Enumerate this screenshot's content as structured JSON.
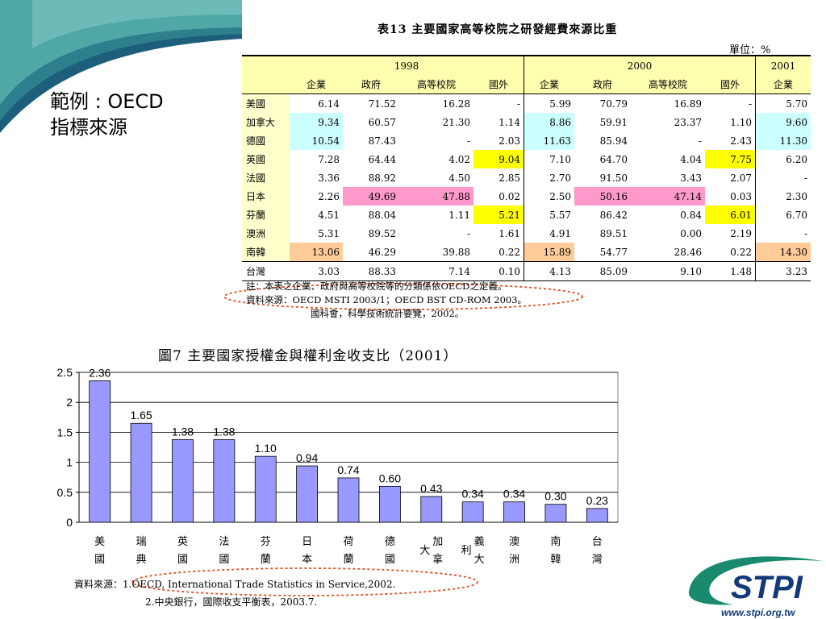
{
  "slide": {
    "side_label_1": "範例 : OECD",
    "side_label_2": "指標來源"
  },
  "table": {
    "title": "表13  主要國家高等校院之研發經費來源比重",
    "unit": "單位：%",
    "years": [
      "1998",
      "2000",
      "2001"
    ],
    "columns": [
      "企業",
      "政府",
      "高等校院",
      "國外",
      "企業",
      "政府",
      "高等校院",
      "國外",
      "企業"
    ],
    "rows": [
      {
        "country": "美國",
        "cells": [
          "6.14",
          "71.52",
          "16.28",
          "-",
          "5.99",
          "70.79",
          "16.89",
          "-",
          "5.70"
        ]
      },
      {
        "country": "加拿大",
        "cells": [
          "9.34",
          "60.57",
          "21.30",
          "1.14",
          "8.86",
          "59.91",
          "23.37",
          "1.10",
          "9.60"
        ]
      },
      {
        "country": "德國",
        "cells": [
          "10.54",
          "87.43",
          "-",
          "2.03",
          "11.63",
          "85.94",
          "-",
          "2.43",
          "11.30"
        ]
      },
      {
        "country": "英國",
        "cells": [
          "7.28",
          "64.44",
          "4.02",
          "9.04",
          "7.10",
          "64.70",
          "4.04",
          "7.75",
          "6.20"
        ]
      },
      {
        "country": "法國",
        "cells": [
          "3.36",
          "88.92",
          "4.50",
          "2.85",
          "2.70",
          "91.50",
          "3.43",
          "2.07",
          "-"
        ]
      },
      {
        "country": "日本",
        "cells": [
          "2.26",
          "49.69",
          "47.88",
          "0.02",
          "2.50",
          "50.16",
          "47.14",
          "0.03",
          "2.30"
        ]
      },
      {
        "country": "芬蘭",
        "cells": [
          "4.51",
          "88.04",
          "1.11",
          "5.21",
          "5.57",
          "86.42",
          "0.84",
          "6.01",
          "6.70"
        ]
      },
      {
        "country": "澳洲",
        "cells": [
          "5.31",
          "89.52",
          "-",
          "1.61",
          "4.91",
          "89.51",
          "0.00",
          "2.19",
          "-"
        ]
      },
      {
        "country": "南韓",
        "cells": [
          "13.06",
          "46.29",
          "39.88",
          "0.22",
          "15.89",
          "54.77",
          "28.46",
          "0.22",
          "14.30"
        ]
      },
      {
        "country": "台灣",
        "cells": [
          "3.03",
          "88.33",
          "7.14",
          "0.10",
          "4.13",
          "85.09",
          "9.10",
          "1.48",
          "3.23"
        ]
      }
    ],
    "highlight_colors": {
      "cyan": "#ccffff",
      "yellow": "#ffff00",
      "pink": "#ff99cc",
      "orange": "#ffcc99"
    },
    "notes": [
      "註：本表之企業、政府與高等校院等的分類係依OECD之定義。",
      "資料來源：OECD MSTI 2003/1；OECD BST  CD-ROM 2003。",
      "國科會，科學技術統計要覽，2002。"
    ]
  },
  "chart_data": {
    "type": "bar",
    "title": "圖7  主要國家授權金與權利金收支比（2001）",
    "categories": [
      "美國",
      "瑞典",
      "英國",
      "法國",
      "芬蘭",
      "日本",
      "荷蘭",
      "德國",
      "加拿大",
      "義大利",
      "澳洲",
      "南韓",
      "台灣"
    ],
    "category_lines": [
      [
        "美",
        "國"
      ],
      [
        "瑞",
        "典"
      ],
      [
        "英",
        "國"
      ],
      [
        "法",
        "國"
      ],
      [
        "芬",
        "蘭"
      ],
      [
        "日",
        "本"
      ],
      [
        "荷",
        "蘭"
      ],
      [
        "德",
        "國"
      ],
      [
        "加",
        "拿"
      ],
      [
        "義",
        "大"
      ],
      [
        "澳",
        "洲"
      ],
      [
        "南",
        "韓"
      ],
      [
        "台",
        "灣"
      ]
    ],
    "category_prefix": [
      "",
      "",
      "",
      "",
      "",
      "",
      "",
      "",
      "大",
      "利",
      "",
      "",
      ""
    ],
    "values": [
      2.36,
      1.65,
      1.38,
      1.38,
      1.1,
      0.94,
      0.74,
      0.6,
      0.43,
      0.34,
      0.34,
      0.3,
      0.23
    ],
    "value_labels": [
      "2.36",
      "1.65",
      "1.38",
      "1.38",
      "1.10",
      "0.94",
      "0.74",
      "0.60",
      "0.43",
      "0.34",
      "0.34",
      "0.30",
      "0.23"
    ],
    "ylim": [
      0,
      2.5
    ],
    "yticks": [
      "0",
      "0.5",
      "1",
      "1.5",
      "2",
      "2.5"
    ],
    "grid": true,
    "bar_color": "#9999ff",
    "sources": [
      "資料來源：1.OECD, International Trade Statistics in Service,2002.",
      "2.中央銀行，國際收支平衡表，2003.7."
    ]
  },
  "logo": {
    "name": "STPI",
    "url": "www.stpi.org.tw",
    "colors": {
      "green": "#1a8a6e",
      "navy": "#123a7a"
    }
  }
}
